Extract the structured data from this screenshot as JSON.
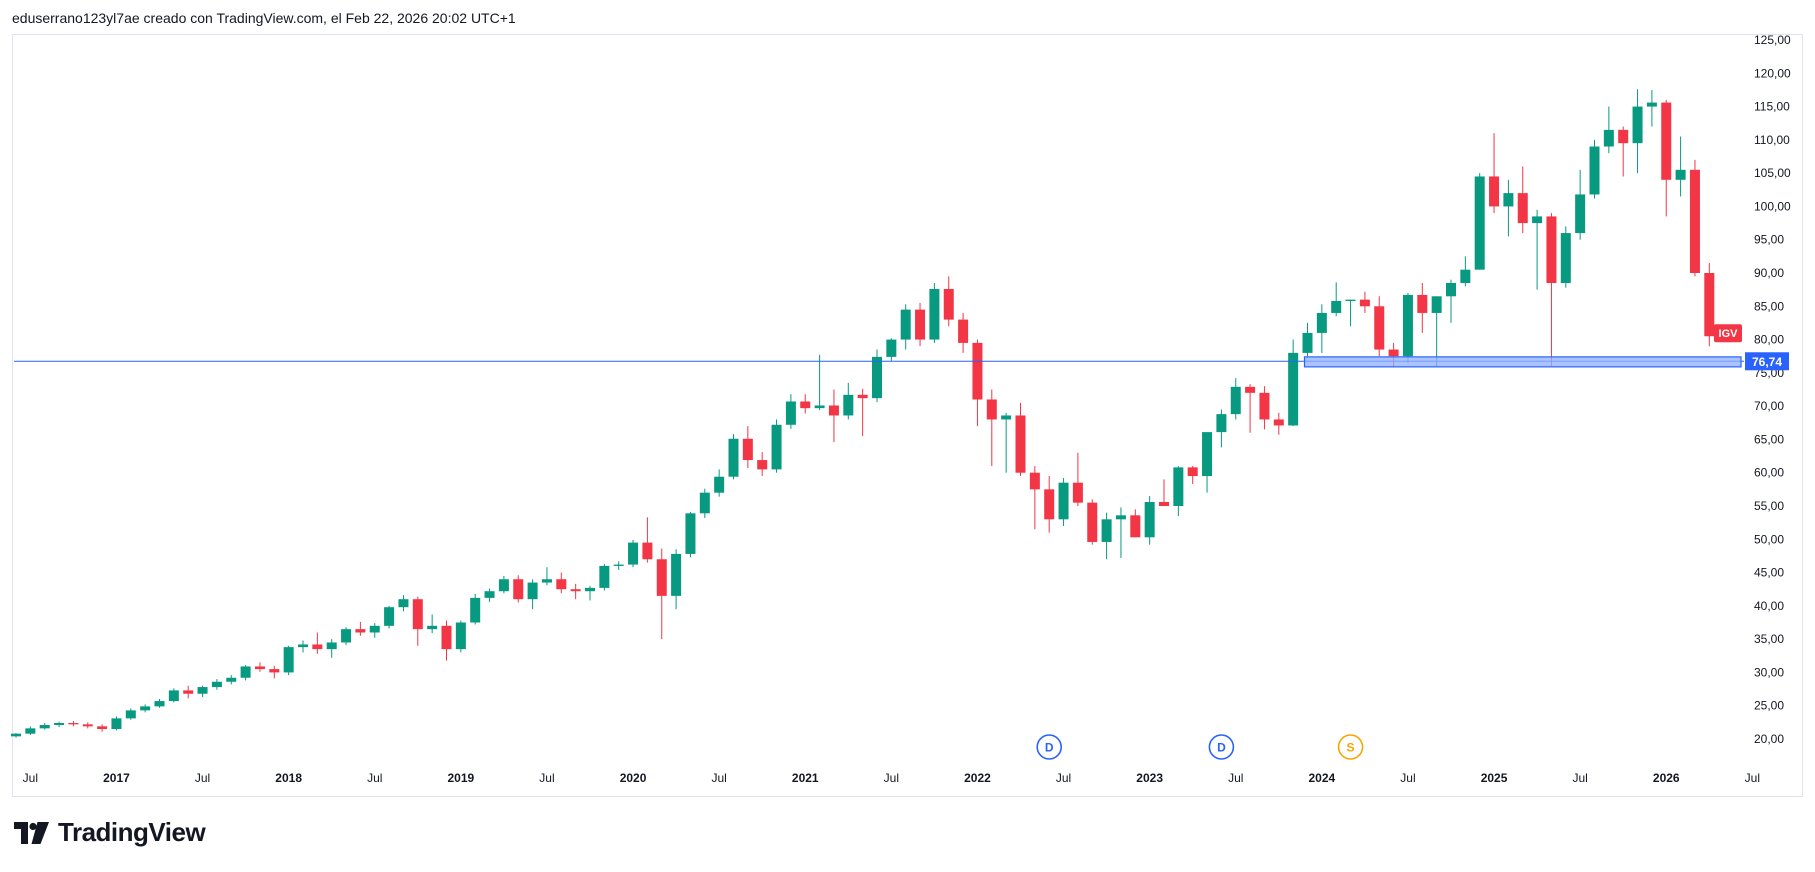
{
  "header": {
    "text": "eduserrano123yl7ae creado con TradingView.com, el Feb 22, 2026 20:02 UTC+1"
  },
  "branding": {
    "logo_text": "TradingView"
  },
  "colors": {
    "up": "#089981",
    "down": "#f23645",
    "line": "#2962ff",
    "zone_fill": "#8fb0ff",
    "symbol_badge": "#f23645",
    "dividend": "#2962ff",
    "split": "#f7a600"
  },
  "chart_data": {
    "type": "candlestick",
    "title": "IGV",
    "symbol_label": "IGV",
    "interval": "monthly",
    "y_range": [
      17,
      126
    ],
    "y_ticks": [
      {
        "value": 125,
        "label": "125,00"
      },
      {
        "value": 120,
        "label": "120,00"
      },
      {
        "value": 115,
        "label": "115,00"
      },
      {
        "value": 110,
        "label": "110,00"
      },
      {
        "value": 105,
        "label": "105,00"
      },
      {
        "value": 100,
        "label": "100,00"
      },
      {
        "value": 95,
        "label": "95,00"
      },
      {
        "value": 90,
        "label": "90,00"
      },
      {
        "value": 85,
        "label": "85,00"
      },
      {
        "value": 80,
        "label": "80,00"
      },
      {
        "value": 75,
        "label": "75,00"
      },
      {
        "value": 70,
        "label": "70,00"
      },
      {
        "value": 65,
        "label": "65,00"
      },
      {
        "value": 60,
        "label": "60,00"
      },
      {
        "value": 55,
        "label": "55,00"
      },
      {
        "value": 50,
        "label": "50,00"
      },
      {
        "value": 45,
        "label": "45,00"
      },
      {
        "value": 40,
        "label": "40,00"
      },
      {
        "value": 35,
        "label": "35,00"
      },
      {
        "value": 30,
        "label": "30,00"
      },
      {
        "value": 25,
        "label": "25,00"
      },
      {
        "value": 20,
        "label": "20,00"
      }
    ],
    "x_ticks": [
      {
        "index": 1,
        "label": "Jul",
        "year": false
      },
      {
        "index": 7,
        "label": "2017",
        "year": true
      },
      {
        "index": 13,
        "label": "Jul",
        "year": false
      },
      {
        "index": 19,
        "label": "2018",
        "year": true
      },
      {
        "index": 25,
        "label": "Jul",
        "year": false
      },
      {
        "index": 31,
        "label": "2019",
        "year": true
      },
      {
        "index": 37,
        "label": "Jul",
        "year": false
      },
      {
        "index": 43,
        "label": "2020",
        "year": true
      },
      {
        "index": 49,
        "label": "Jul",
        "year": false
      },
      {
        "index": 55,
        "label": "2021",
        "year": true
      },
      {
        "index": 61,
        "label": "Jul",
        "year": false
      },
      {
        "index": 67,
        "label": "2022",
        "year": true
      },
      {
        "index": 73,
        "label": "Jul",
        "year": false
      },
      {
        "index": 79,
        "label": "2023",
        "year": true
      },
      {
        "index": 85,
        "label": "Jul",
        "year": false
      },
      {
        "index": 91,
        "label": "2024",
        "year": true
      },
      {
        "index": 97,
        "label": "Jul",
        "year": false
      },
      {
        "index": 103,
        "label": "2025",
        "year": true
      },
      {
        "index": 109,
        "label": "Jul",
        "year": false
      },
      {
        "index": 115,
        "label": "2026",
        "year": true
      },
      {
        "index": 121,
        "label": "Jul",
        "year": false
      }
    ],
    "horizontal_line": {
      "value": 76.74,
      "label": "76,74"
    },
    "support_zone": {
      "low": 75.9,
      "high": 77.4,
      "start_index": 90,
      "end_index": 120
    },
    "events": [
      {
        "index": 72,
        "label": "D",
        "kind": "dividend"
      },
      {
        "index": 84,
        "label": "D",
        "kind": "dividend"
      },
      {
        "index": 93,
        "label": "S",
        "kind": "split"
      }
    ],
    "candles": [
      [
        20.4,
        20.9,
        20.2,
        20.8
      ],
      [
        20.8,
        21.9,
        20.6,
        21.6
      ],
      [
        21.6,
        22.4,
        21.4,
        22.1
      ],
      [
        22.1,
        22.6,
        21.8,
        22.4
      ],
      [
        22.4,
        22.7,
        21.9,
        22.2
      ],
      [
        22.2,
        22.5,
        21.6,
        21.9
      ],
      [
        21.9,
        22.2,
        21.1,
        21.5
      ],
      [
        21.5,
        23.4,
        21.3,
        23.1
      ],
      [
        23.1,
        24.6,
        22.9,
        24.3
      ],
      [
        24.3,
        25.2,
        24.0,
        24.9
      ],
      [
        24.9,
        26.0,
        24.7,
        25.7
      ],
      [
        25.7,
        27.6,
        25.5,
        27.3
      ],
      [
        27.3,
        28.0,
        26.1,
        26.8
      ],
      [
        26.8,
        28.0,
        26.3,
        27.8
      ],
      [
        27.8,
        29.0,
        27.4,
        28.6
      ],
      [
        28.6,
        29.6,
        28.2,
        29.2
      ],
      [
        29.2,
        31.1,
        28.8,
        30.9
      ],
      [
        30.9,
        31.5,
        30.1,
        30.5
      ],
      [
        30.5,
        31.0,
        29.1,
        30.0
      ],
      [
        30.0,
        34.0,
        29.6,
        33.8
      ],
      [
        33.8,
        34.8,
        33.0,
        34.2
      ],
      [
        34.2,
        36.0,
        32.8,
        33.5
      ],
      [
        33.5,
        35.0,
        32.2,
        34.5
      ],
      [
        34.5,
        36.8,
        34.1,
        36.5
      ],
      [
        36.5,
        37.6,
        35.5,
        36.0
      ],
      [
        36.0,
        37.4,
        35.2,
        37.0
      ],
      [
        37.0,
        40.0,
        36.6,
        39.8
      ],
      [
        39.8,
        41.6,
        39.2,
        41.0
      ],
      [
        41.0,
        41.4,
        34.0,
        36.5
      ],
      [
        36.5,
        38.7,
        35.9,
        37.0
      ],
      [
        37.0,
        37.8,
        31.8,
        33.5
      ],
      [
        33.5,
        37.8,
        33.0,
        37.5
      ],
      [
        37.5,
        41.8,
        37.2,
        41.2
      ],
      [
        41.2,
        42.6,
        40.6,
        42.2
      ],
      [
        42.2,
        44.5,
        41.9,
        44.0
      ],
      [
        44.0,
        44.6,
        40.5,
        41.0
      ],
      [
        41.0,
        44.0,
        39.5,
        43.5
      ],
      [
        43.5,
        45.8,
        43.1,
        44.0
      ],
      [
        44.0,
        45.0,
        41.9,
        42.5
      ],
      [
        42.5,
        43.3,
        41.0,
        42.2
      ],
      [
        42.2,
        43.0,
        40.8,
        42.7
      ],
      [
        42.7,
        46.3,
        42.3,
        46.0
      ],
      [
        46.0,
        46.7,
        45.4,
        46.2
      ],
      [
        46.2,
        49.9,
        45.8,
        49.5
      ],
      [
        49.5,
        53.3,
        46.5,
        47.0
      ],
      [
        47.0,
        48.6,
        35.0,
        41.5
      ],
      [
        41.5,
        48.5,
        39.5,
        47.8
      ],
      [
        47.8,
        54.1,
        47.3,
        53.9
      ],
      [
        53.9,
        57.6,
        53.2,
        57.0
      ],
      [
        57.0,
        60.5,
        56.4,
        59.4
      ],
      [
        59.4,
        65.8,
        59.0,
        65.1
      ],
      [
        65.1,
        67.0,
        60.7,
        61.9
      ],
      [
        61.9,
        63.1,
        59.5,
        60.5
      ],
      [
        60.5,
        68.0,
        60.0,
        67.2
      ],
      [
        67.2,
        71.8,
        66.6,
        70.7
      ],
      [
        70.7,
        71.8,
        68.9,
        69.7
      ],
      [
        69.7,
        77.7,
        69.4,
        70.1
      ],
      [
        70.1,
        72.5,
        64.6,
        68.6
      ],
      [
        68.6,
        73.5,
        68.0,
        71.7
      ],
      [
        71.7,
        72.6,
        65.5,
        71.2
      ],
      [
        71.2,
        78.5,
        70.6,
        77.4
      ],
      [
        77.4,
        80.2,
        76.8,
        80.0
      ],
      [
        80.0,
        85.3,
        78.5,
        84.5
      ],
      [
        84.5,
        85.5,
        79.0,
        80.0
      ],
      [
        80.0,
        88.5,
        79.5,
        87.6
      ],
      [
        87.6,
        89.5,
        82.0,
        83.0
      ],
      [
        83.0,
        84.0,
        78.0,
        79.5
      ],
      [
        79.5,
        80.0,
        67.0,
        71.0
      ],
      [
        71.0,
        72.5,
        61.0,
        68.0
      ],
      [
        68.0,
        69.0,
        60.0,
        68.6
      ],
      [
        68.6,
        70.5,
        59.5,
        60.0
      ],
      [
        60.0,
        61.0,
        51.5,
        57.5
      ],
      [
        57.5,
        59.5,
        51.0,
        53.0
      ],
      [
        53.0,
        59.2,
        52.0,
        58.5
      ],
      [
        58.5,
        63.0,
        55.0,
        55.5
      ],
      [
        55.5,
        56.0,
        49.2,
        49.6
      ],
      [
        49.6,
        54.0,
        47.0,
        53.0
      ],
      [
        53.0,
        54.8,
        47.2,
        53.6
      ],
      [
        53.6,
        54.5,
        50.3,
        50.3
      ],
      [
        50.3,
        56.5,
        49.2,
        55.6
      ],
      [
        55.6,
        59.0,
        55.0,
        55.0
      ],
      [
        55.0,
        61.0,
        53.5,
        60.8
      ],
      [
        60.8,
        61.0,
        58.3,
        59.5
      ],
      [
        59.5,
        66.0,
        57.0,
        66.1
      ],
      [
        66.1,
        69.5,
        63.8,
        68.8
      ],
      [
        68.8,
        74.2,
        68.0,
        72.9
      ],
      [
        72.9,
        73.3,
        66.0,
        72.0
      ],
      [
        72.0,
        73.0,
        66.5,
        68.0
      ],
      [
        68.0,
        69.0,
        65.7,
        67.1
      ],
      [
        67.1,
        80.0,
        67.0,
        78.0
      ],
      [
        78.0,
        82.5,
        77.5,
        81.0
      ],
      [
        81.0,
        85.3,
        78.0,
        84.0
      ],
      [
        84.0,
        88.6,
        83.5,
        85.8
      ],
      [
        85.8,
        86.0,
        82.0,
        86.0
      ],
      [
        86.0,
        87.2,
        84.0,
        85.0
      ],
      [
        85.0,
        86.5,
        77.5,
        78.5
      ],
      [
        78.5,
        79.5,
        75.8,
        77.5
      ],
      [
        77.5,
        87.0,
        76.5,
        86.7
      ],
      [
        86.7,
        88.5,
        81.0,
        84.0
      ],
      [
        84.0,
        86.5,
        76.0,
        86.5
      ],
      [
        86.5,
        89.0,
        82.5,
        88.5
      ],
      [
        88.5,
        92.5,
        88.0,
        90.5
      ],
      [
        90.5,
        105.0,
        90.5,
        104.5
      ],
      [
        104.5,
        111.0,
        99.0,
        100.0
      ],
      [
        100.0,
        104.0,
        95.5,
        102.0
      ],
      [
        102.0,
        106.0,
        96.0,
        97.5
      ],
      [
        97.5,
        99.5,
        87.5,
        98.5
      ],
      [
        98.5,
        99.0,
        76.0,
        88.5
      ],
      [
        88.5,
        97.0,
        87.8,
        96.0
      ],
      [
        96.0,
        105.5,
        95.0,
        101.8
      ],
      [
        101.8,
        110.0,
        101.2,
        109.0
      ],
      [
        109.0,
        115.0,
        108.0,
        111.5
      ],
      [
        111.5,
        112.0,
        104.5,
        109.5
      ],
      [
        109.5,
        117.6,
        105.0,
        115.0
      ],
      [
        115.0,
        117.5,
        112.0,
        115.6
      ],
      [
        115.6,
        116.0,
        98.5,
        104.0
      ],
      [
        104.0,
        110.5,
        101.5,
        105.5
      ],
      [
        105.5,
        107.0,
        89.5,
        90.0
      ],
      [
        90.0,
        91.5,
        79.0,
        80.5
      ]
    ]
  }
}
